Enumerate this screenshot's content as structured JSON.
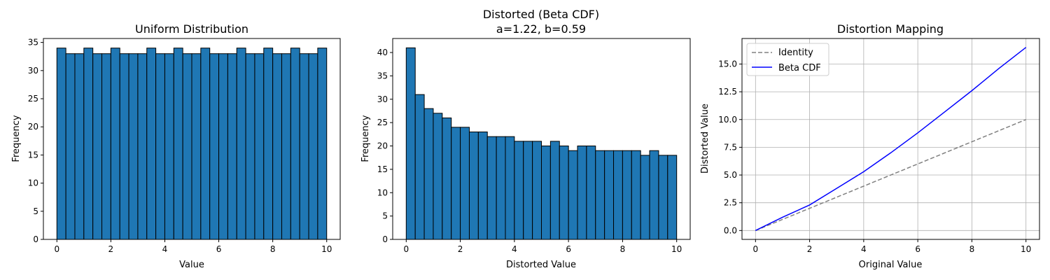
{
  "chart_data": [
    {
      "type": "bar",
      "title": "Uniform Distribution",
      "xlabel": "Value",
      "ylabel": "Frequency",
      "xlim": [
        -0.5,
        10.5
      ],
      "ylim": [
        0,
        35.7
      ],
      "xticks": [
        0,
        2,
        4,
        6,
        8,
        10
      ],
      "yticks": [
        0,
        5,
        10,
        15,
        20,
        25,
        30,
        35
      ],
      "bin_range": [
        0,
        10
      ],
      "values": [
        34,
        33,
        33,
        34,
        33,
        33,
        34,
        33,
        33,
        33,
        34,
        33,
        33,
        34,
        33,
        33,
        34,
        33,
        33,
        33,
        34,
        33,
        33,
        34,
        33,
        33,
        34,
        33,
        33,
        34
      ],
      "bar_color": "#1f77b4",
      "edge_color": "#000000",
      "grid": false
    },
    {
      "type": "bar",
      "title": "Distorted (Beta CDF)",
      "subtitle": "a=1.22, b=0.59",
      "xlabel": "Distorted Value",
      "ylabel": "Frequency",
      "xlim": [
        -0.5,
        10.5
      ],
      "ylim": [
        0,
        43
      ],
      "xticks": [
        0,
        2,
        4,
        6,
        8,
        10
      ],
      "yticks": [
        0,
        5,
        10,
        15,
        20,
        25,
        30,
        35,
        40
      ],
      "bin_range": [
        0,
        10
      ],
      "values": [
        41,
        31,
        28,
        27,
        26,
        24,
        24,
        23,
        23,
        22,
        22,
        22,
        21,
        21,
        21,
        20,
        21,
        20,
        19,
        20,
        20,
        19,
        19,
        19,
        19,
        19,
        18,
        19,
        18,
        18
      ],
      "bar_color": "#1f77b4",
      "edge_color": "#000000",
      "grid": false
    },
    {
      "type": "line",
      "title": "Distortion Mapping",
      "xlabel": "Original Value",
      "ylabel": "Distorted Value",
      "xlim": [
        -0.5,
        10.5
      ],
      "ylim": [
        -0.8,
        17.3
      ],
      "xticks": [
        0,
        2,
        4,
        6,
        8,
        10
      ],
      "yticks": [
        0.0,
        2.5,
        5.0,
        7.5,
        10.0,
        12.5,
        15.0
      ],
      "ytick_labels": [
        "0.0",
        "2.5",
        "5.0",
        "7.5",
        "10.0",
        "12.5",
        "15.0"
      ],
      "grid": true,
      "legend_position": "upper-left",
      "series": [
        {
          "name": "Identity",
          "color": "#808080",
          "dash": "dashed",
          "x": [
            0,
            10
          ],
          "y": [
            0,
            10
          ]
        },
        {
          "name": "Beta CDF",
          "color": "#0000ff",
          "dash": "solid",
          "x": [
            0,
            1,
            2,
            3,
            4,
            5,
            6,
            7,
            8,
            9,
            10
          ],
          "y": [
            0,
            1.2,
            2.3,
            3.8,
            5.3,
            7.0,
            8.8,
            10.7,
            12.6,
            14.6,
            16.5
          ]
        }
      ]
    }
  ]
}
